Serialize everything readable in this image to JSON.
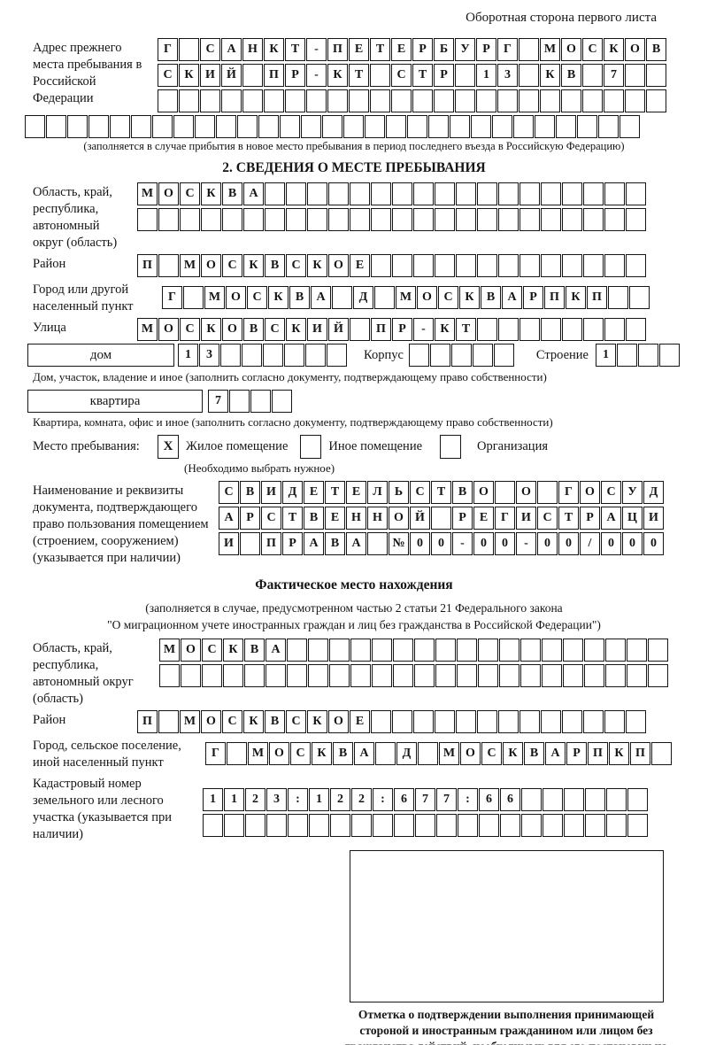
{
  "colors": {
    "ink": "#151515",
    "paper": "#ffffff"
  },
  "page": {
    "back_note": "Оборотная сторона первого листа"
  },
  "prev_address": {
    "label": "Адрес прежнего места пребывания в Российской Федерации",
    "row1": "Г САНКТ-ПЕТЕРБУРГ МОСКОВ",
    "row2": "СКИЙ ПР-КТ СТР 13 КВ 7  ",
    "row3": "                        ",
    "row4": "                             ",
    "caption": "(заполняется в случае прибытия в новое место пребывания в период последнего въезда в Российскую Федерацию)"
  },
  "section2": {
    "title": "2. СВЕДЕНИЯ О МЕСТЕ ПРЕБЫВАНИЯ",
    "region": {
      "label": "Область, край, республика, автономный округ (область)",
      "row1": "МОСКВА                  ",
      "row2": "                        "
    },
    "district": {
      "label": "Район",
      "row": "П МОСКВСКОЕ             "
    },
    "city": {
      "label": "Город или другой населенный пункт",
      "row": "Г МОСКВА Д МОСКВАРПКП  "
    },
    "street": {
      "label": "Улица",
      "row": "МОСКОВСКИЙ ПР-КТ        "
    },
    "house": {
      "box_label": "дом",
      "cells": "13      ",
      "korpus_label": "Корпус",
      "korpus_cells": "     ",
      "stroenie_label": "Строение",
      "stroenie_cells": "1   ",
      "caption": "Дом, участок, владение и иное (заполнить согласно документу, подтверждающему право собственности)"
    },
    "apartment": {
      "box_label": "квартира",
      "cells": "7   ",
      "caption": "Квартира, комната, офис и иное (заполнить согласно документу, подтверждающему право собственности)"
    },
    "stay_type": {
      "label": "Место пребывания:",
      "options": [
        {
          "label": "Жилое помещение",
          "checked": "X"
        },
        {
          "label": "Иное помещение",
          "checked": ""
        },
        {
          "label": "Организация",
          "checked": ""
        }
      ],
      "caption": "(Необходимо выбрать нужное)"
    },
    "document": {
      "label": "Наименование и реквизиты документа, подтверждающего право пользования помещением (строением, сооружением) (указывается при наличии)",
      "row1": "СВИДЕТЕЛЬСТВО О ГОСУД",
      "row2": "АРСТВЕННОЙ РЕГИСТРАЦИ",
      "row3": "И ПРАВА №00-00-00/000"
    }
  },
  "actual_location": {
    "title": "Фактическое место нахождения",
    "caption_line1": "(заполняется в случае, предусмотренном частью 2 статьи 21 Федерального закона",
    "caption_line2": "\"О миграционном учете иностранных граждан и лиц без гражданства в Российской Федерации\")",
    "region": {
      "label": "Область, край, республика, автономный округ (область)",
      "row1": "МОСКВА                  ",
      "row2": "                        "
    },
    "district": {
      "label": "Район",
      "row": "П МОСКВСКОЕ             "
    },
    "city": {
      "label": "Город, сельское поселение, иной населенный пункт",
      "row": "Г МОСКВА Д МОСКВАРПКП "
    },
    "cadastral": {
      "label": "Кадастровый номер земельного или лесного участка (указывается при наличии)",
      "row1": "1123:122:677:66      ",
      "row2": "                     "
    },
    "mark_caption": "Отметка о подтверждении выполнения принимающей стороной и иностранным гражданином или лицом без гражданства действий, необходимых для его постановки на учет по месту пребывания"
  }
}
